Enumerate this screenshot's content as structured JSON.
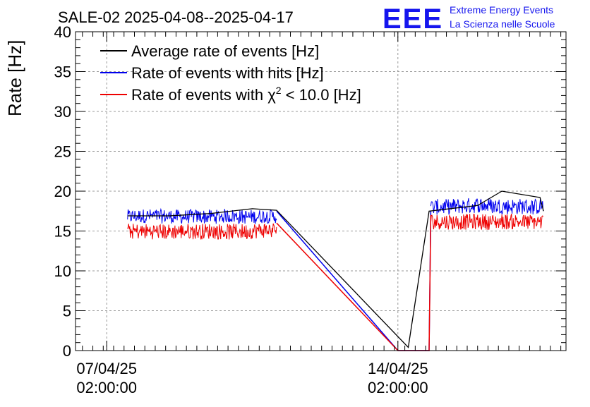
{
  "logo": {
    "text": "EEE",
    "color": "#1515ee"
  },
  "brand": {
    "line1": "Extreme Energy Events",
    "line2": "La Scienza nelle Scuole",
    "color": "#1515ee"
  },
  "chart_data": {
    "type": "line",
    "title": "SALE-02 2025-04-08--2025-04-17",
    "ylabel": "Rate [Hz]",
    "xlabel": "",
    "x_axis": "time",
    "xlim": [
      "2025-04-06T08:00",
      "2025-04-18T03:00"
    ],
    "ylim": [
      0,
      40
    ],
    "y_ticks": [
      0,
      5,
      10,
      15,
      20,
      25,
      30,
      35,
      40
    ],
    "x_ticks": [
      {
        "x": "2025-04-07T02:00",
        "line1": "07/04/25",
        "line2": "02:00:00"
      },
      {
        "x": "2025-04-14T02:00",
        "line1": "14/04/25",
        "line2": "02:00:00"
      }
    ],
    "grid": true,
    "legend_position": "top-left",
    "series": [
      {
        "name": "Average rate of events [Hz]",
        "label_main": "Average rate of events [Hz]",
        "color": "#000000",
        "points": [
          [
            "2025-04-07T14:00",
            16.9
          ],
          [
            "2025-04-08T14:00",
            16.9
          ],
          [
            "2025-04-09T14:00",
            17.2
          ],
          [
            "2025-04-10T14:00",
            17.8
          ],
          [
            "2025-04-11T04:00",
            17.6
          ],
          [
            "2025-04-14T08:00",
            0.4
          ],
          [
            "2025-04-14T20:00",
            17.5
          ],
          [
            "2025-04-16T00:00",
            18.2
          ],
          [
            "2025-04-16T14:00",
            20.0
          ],
          [
            "2025-04-17T12:00",
            19.2
          ],
          [
            "2025-04-17T14:00",
            17.5
          ]
        ]
      },
      {
        "name": "Rate of events with hits [Hz]",
        "label_main": "Rate of events with hits [Hz]",
        "color": "#0000ee",
        "band": {
          "low": 15.8,
          "high": 18.3
        },
        "segments": [
          {
            "start": "2025-04-07T14:00",
            "end": "2025-04-11T04:00",
            "mid": 16.8,
            "amp": 0.9
          },
          {
            "start": "2025-04-14T21:00",
            "end": "2025-04-17T14:00",
            "mid": 18.0,
            "amp": 1.0
          }
        ],
        "links": [
          [
            "2025-04-11T04:00",
            17.5
          ],
          [
            "2025-04-14T02:00",
            0.0
          ],
          [
            "2025-04-14T20:00",
            0.0
          ],
          [
            "2025-04-14T21:00",
            17.5
          ]
        ]
      },
      {
        "name": "Rate of events with χ² < 10.0 [Hz]",
        "label_main": "Rate of events with χ",
        "label_sup": "2",
        "label_tail": " < 10.0 [Hz]",
        "color": "#ee0000",
        "segments": [
          {
            "start": "2025-04-07T14:00",
            "end": "2025-04-11T04:00",
            "mid": 15.0,
            "amp": 1.0
          },
          {
            "start": "2025-04-14T21:00",
            "end": "2025-04-17T14:00",
            "mid": 16.2,
            "amp": 1.0
          }
        ],
        "links": [
          [
            "2025-04-11T04:00",
            16.0
          ],
          [
            "2025-04-14T02:00",
            0.0
          ],
          [
            "2025-04-14T20:00",
            0.0
          ],
          [
            "2025-04-14T21:00",
            17.0
          ]
        ]
      }
    ]
  }
}
